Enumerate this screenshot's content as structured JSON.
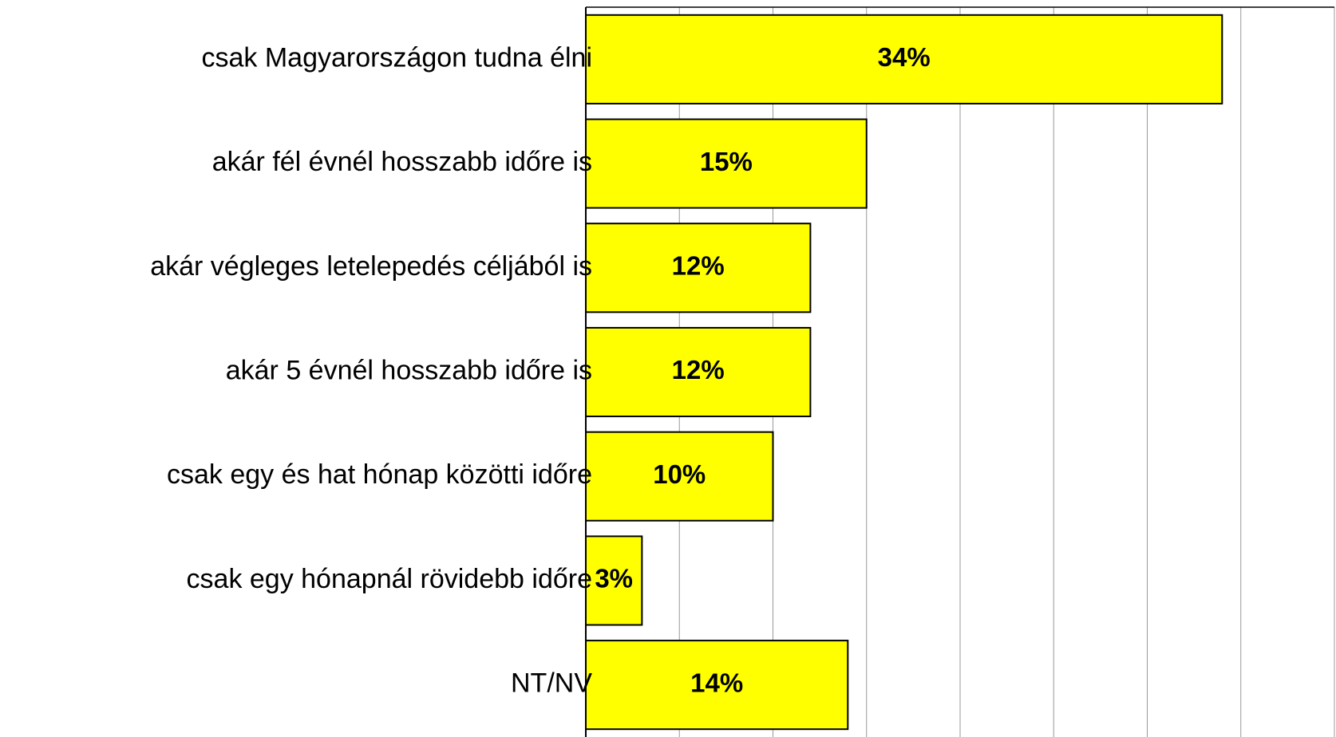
{
  "chart_data": {
    "type": "bar",
    "orientation": "horizontal",
    "categories": [
      "csak Magyarországon tudna élni",
      "akár fél évnél hosszabb időre is",
      "akár végleges letelepedés céljából is",
      "akár 5 évnél hosszabb időre is",
      "csak egy és hat hónap közötti időre",
      "csak egy hónapnál rövidebb időre",
      "NT/NV"
    ],
    "values": [
      34,
      15,
      12,
      12,
      10,
      3,
      14
    ],
    "value_labels": [
      "34%",
      "15%",
      "12%",
      "12%",
      "10%",
      "3%",
      "14%"
    ],
    "color": "#ffff00",
    "xlim": [
      0,
      40
    ],
    "xticks": [
      0,
      5,
      10,
      15,
      20,
      25,
      30,
      35,
      40
    ],
    "grid": true
  }
}
